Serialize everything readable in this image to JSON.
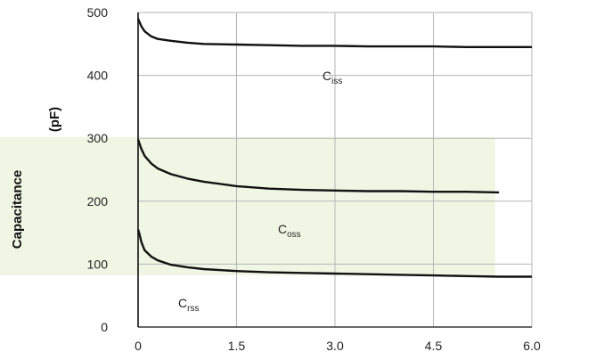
{
  "chart_data": {
    "type": "line",
    "title": "",
    "xlabel": "",
    "ylabel": "Capacitance",
    "ylabel_unit": "(pF)",
    "xlim": [
      0,
      6
    ],
    "ylim": [
      0,
      500
    ],
    "x_ticks": [
      "0",
      "1.5",
      "3.0",
      "4.5",
      "6.0"
    ],
    "y_ticks": [
      "0",
      "100",
      "200",
      "300",
      "400",
      "500"
    ],
    "grid": true,
    "background": "#ffffff",
    "highlight_band": {
      "y_from": 82,
      "y_to": 302,
      "color": "#f0f6e4"
    },
    "line_color": "#111111",
    "series": [
      {
        "name": "Ciss",
        "label_main": "C",
        "label_sub": "iss",
        "x": [
          0,
          0.05,
          0.1,
          0.2,
          0.3,
          0.5,
          0.75,
          1.0,
          1.5,
          2.0,
          2.5,
          3.0,
          3.5,
          4.0,
          4.5,
          5.0,
          5.5,
          6.0
        ],
        "y": [
          490,
          478,
          470,
          462,
          458,
          455,
          452,
          450,
          449,
          448,
          447,
          447,
          446,
          446,
          446,
          445,
          445,
          445
        ]
      },
      {
        "name": "Coss",
        "label_main": "C",
        "label_sub": "oss",
        "x": [
          0,
          0.05,
          0.1,
          0.2,
          0.3,
          0.5,
          0.75,
          1.0,
          1.5,
          2.0,
          2.5,
          3.0,
          3.5,
          4.0,
          4.5,
          5.0,
          5.5
        ],
        "y": [
          298,
          283,
          272,
          260,
          252,
          243,
          236,
          231,
          224,
          220,
          218,
          217,
          216,
          216,
          215,
          215,
          214
        ]
      },
      {
        "name": "Crss",
        "label_main": "C",
        "label_sub": "rss",
        "x": [
          0,
          0.02,
          0.05,
          0.1,
          0.2,
          0.3,
          0.5,
          0.75,
          1.0,
          1.5,
          2.0,
          2.5,
          3.0,
          3.5,
          4.0,
          4.5,
          5.0,
          5.5,
          6.0
        ],
        "y": [
          155,
          148,
          135,
          122,
          112,
          106,
          99,
          95,
          92,
          89,
          87,
          86,
          85,
          84,
          83,
          82,
          81,
          80,
          80
        ]
      }
    ]
  }
}
